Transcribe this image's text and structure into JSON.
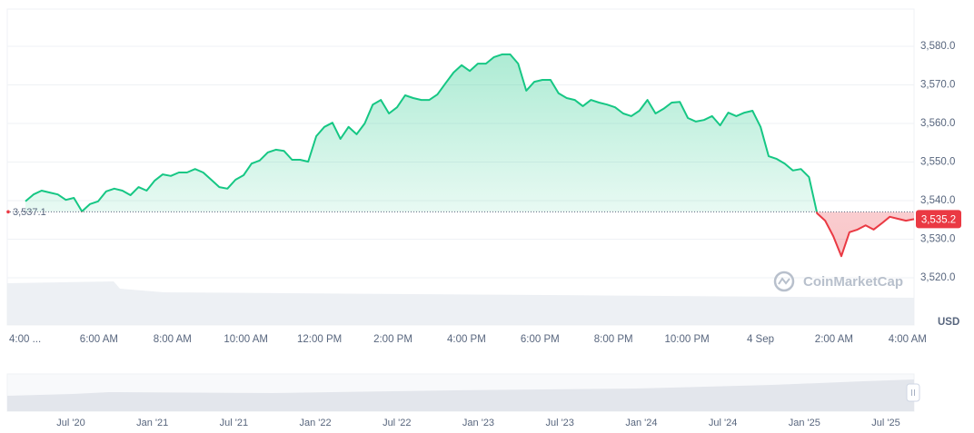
{
  "chart_data": {
    "type": "area",
    "x_tick_labels": [
      "4:00 ...",
      "6:00 AM",
      "8:00 AM",
      "10:00 AM",
      "12:00 PM",
      "2:00 PM",
      "4:00 PM",
      "6:00 PM",
      "8:00 PM",
      "10:00 PM",
      "4 Sep",
      "2:00 AM",
      "4:00 AM"
    ],
    "values": [
      3539.8,
      3541.6,
      3542.6,
      3542.1,
      3541.6,
      3540.2,
      3540.7,
      3537.2,
      3539.1,
      3539.8,
      3542.4,
      3543.1,
      3542.6,
      3541.4,
      3543.5,
      3542.6,
      3545.2,
      3546.8,
      3546.4,
      3547.3,
      3547.3,
      3548.2,
      3547.3,
      3545.4,
      3543.5,
      3543.1,
      3545.4,
      3546.6,
      3549.6,
      3550.4,
      3552.5,
      3553.2,
      3552.9,
      3550.6,
      3550.6,
      3550.1,
      3556.7,
      3559.1,
      3560.2,
      3556.0,
      3559.1,
      3557.2,
      3560.0,
      3564.9,
      3566.1,
      3562.6,
      3564.2,
      3567.3,
      3566.6,
      3566.1,
      3566.1,
      3567.5,
      3570.4,
      3573.2,
      3575.1,
      3573.6,
      3575.5,
      3575.5,
      3577.2,
      3577.9,
      3577.9,
      3575.5,
      3568.5,
      3570.8,
      3571.3,
      3571.3,
      3567.8,
      3566.6,
      3566.1,
      3564.5,
      3566.1,
      3565.4,
      3564.9,
      3564.2,
      3562.6,
      3561.9,
      3563.3,
      3566.1,
      3562.6,
      3563.8,
      3565.4,
      3565.6,
      3561.4,
      3560.5,
      3560.9,
      3561.9,
      3559.5,
      3562.8,
      3561.9,
      3562.8,
      3563.3,
      3559.1,
      3551.5,
      3550.8,
      3549.6,
      3547.8,
      3548.2,
      3546.1,
      3536.7,
      3534.8,
      3530.8,
      3525.6,
      3531.8,
      3532.5,
      3533.6,
      3532.5,
      3534.1,
      3535.8,
      3535.3,
      3534.8,
      3535.2
    ],
    "ylim": [
      3508,
      3590
    ],
    "yticks": [
      {
        "value": 3580,
        "label": "3,580.0"
      },
      {
        "value": 3570,
        "label": "3,570.0"
      },
      {
        "value": 3560,
        "label": "3,560.0"
      },
      {
        "value": 3550,
        "label": "3,550.0"
      },
      {
        "value": 3540,
        "label": "3,540.0"
      },
      {
        "value": 3530,
        "label": "3,530.0"
      },
      {
        "value": 3520,
        "label": "3,520.0"
      }
    ],
    "open_price": {
      "value": 3537.1,
      "label": "3,537.1"
    },
    "last_price": {
      "value": 3535.2,
      "label": "3,535.2"
    },
    "up_color": "#16c784",
    "down_color": "#ea3943",
    "currency": "USD",
    "watermark": "CoinMarketCap",
    "grid": true,
    "navigator_labels": [
      "Jul '20",
      "Jan '21",
      "Jul '21",
      "Jan '22",
      "Jul '22",
      "Jan '23",
      "Jul '23",
      "Jan '24",
      "Jul '24",
      "Jan '25",
      "Jul '25"
    ]
  }
}
